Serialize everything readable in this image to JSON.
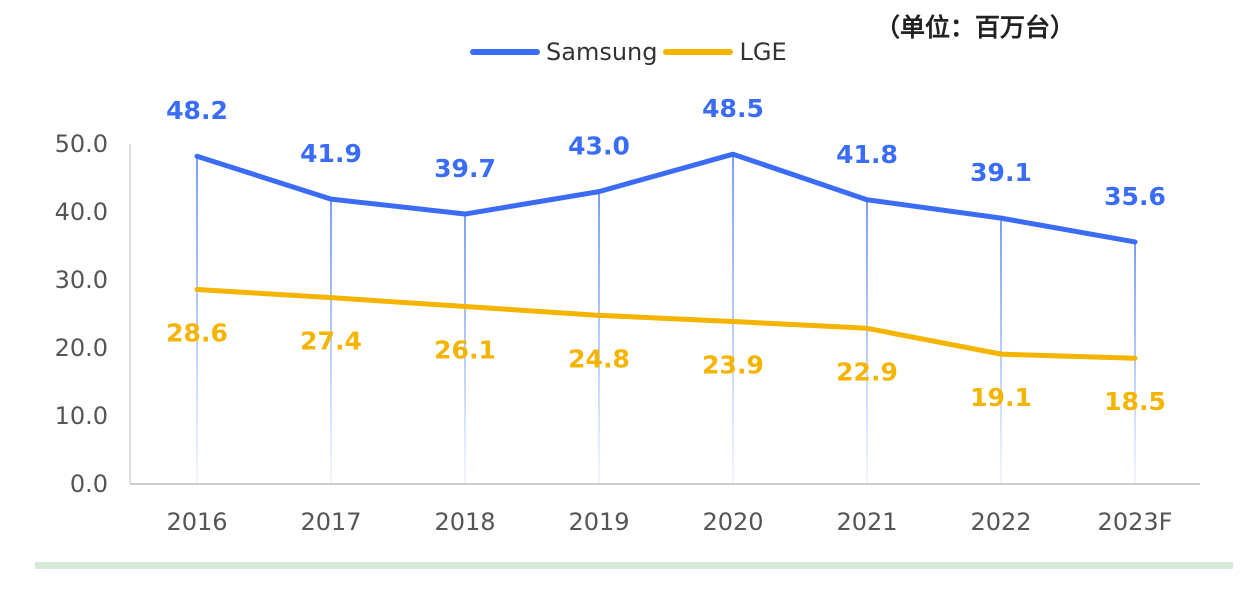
{
  "unit_label": "（单位：百万台）",
  "colors": {
    "samsung": "#3b6cf6",
    "lge": "#f4b400",
    "axis_text": "#555555",
    "gridline": "#7fa2f5"
  },
  "chart_data": {
    "type": "line",
    "categories": [
      "2016",
      "2017",
      "2018",
      "2019",
      "2020",
      "2021",
      "2022",
      "2023F"
    ],
    "series": [
      {
        "name": "Samsung",
        "values": [
          48.2,
          41.9,
          39.7,
          43.0,
          48.5,
          41.8,
          39.1,
          35.6
        ],
        "labels": [
          "48.2",
          "41.9",
          "39.7",
          "43.0",
          "48.5",
          "41.8",
          "39.1",
          "35.6"
        ]
      },
      {
        "name": "LGE",
        "values": [
          28.6,
          27.4,
          26.1,
          24.8,
          23.9,
          22.9,
          19.1,
          18.5
        ],
        "labels": [
          "28.6",
          "27.4",
          "26.1",
          "24.8",
          "23.9",
          "22.9",
          "19.1",
          "18.5"
        ]
      }
    ],
    "yticks": [
      "0.0",
      "10.0",
      "20.0",
      "30.0",
      "40.0",
      "50.0"
    ],
    "ylim": [
      0,
      50
    ],
    "legend_position": "top-center",
    "grid": false
  }
}
